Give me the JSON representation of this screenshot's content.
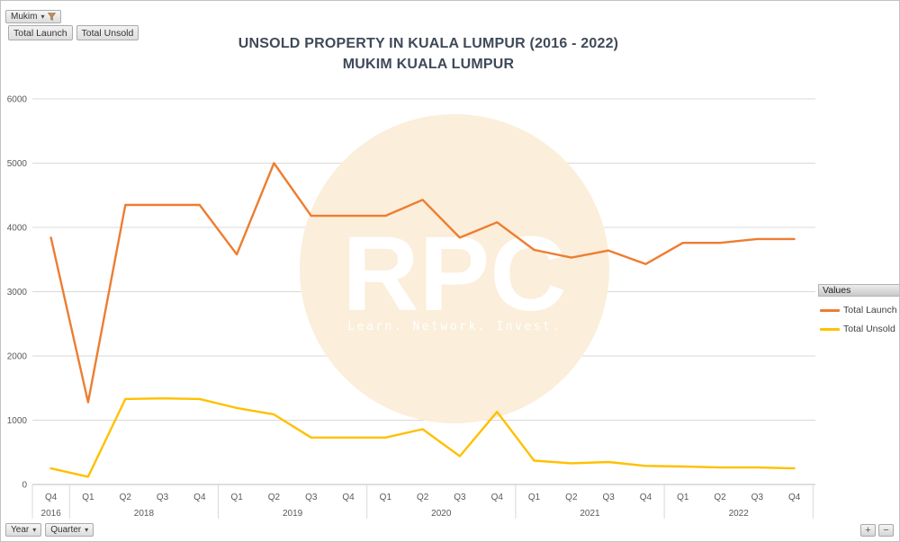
{
  "filter_bar": {
    "field_label": "Mukim"
  },
  "series_buttons": {
    "launch": "Total Launch",
    "unsold": "Total Unsold"
  },
  "title": {
    "line1": "UNSOLD PROPERTY IN KUALA LUMPUR (2016 - 2022)",
    "line2": "MUKIM KUALA LUMPUR"
  },
  "watermark": {
    "text": "RPC",
    "tagline": "Learn. Network. Invest.",
    "circle_color": "#FBEEDA",
    "text_color": "#FFFFFF"
  },
  "legend": {
    "header": "Values",
    "items": [
      {
        "label": "Total Launch",
        "color": "#ED7D31"
      },
      {
        "label": "Total Unsold",
        "color": "#FFC000"
      }
    ]
  },
  "axis_field_buttons": {
    "year": "Year",
    "quarter": "Quarter"
  },
  "zoom_controls": {
    "plus": "+",
    "minus": "−"
  },
  "colors": {
    "launch": "#ED7D31",
    "unsold": "#FFC000",
    "gridline": "#D9D9D9",
    "axis_line": "#BFBFBF",
    "axis_text": "#595959",
    "title_text": "#3F4A59"
  },
  "chart_data": {
    "type": "line",
    "title": "UNSOLD PROPERTY IN KUALA LUMPUR (2016 - 2022) MUKIM KUALA LUMPUR",
    "categories": [
      "2016 Q4",
      "2018 Q1",
      "2018 Q2",
      "2018 Q3",
      "2018 Q4",
      "2019 Q1",
      "2019 Q2",
      "2019 Q3",
      "2019 Q4",
      "2020 Q1",
      "2020 Q2",
      "2020 Q3",
      "2020 Q4",
      "2021 Q1",
      "2021 Q2",
      "2021 Q3",
      "2021 Q4",
      "2022 Q1",
      "2022 Q2",
      "2022 Q3",
      "2022 Q4"
    ],
    "x_groups": [
      {
        "year": "2016",
        "quarters": [
          "Q4"
        ]
      },
      {
        "year": "2018",
        "quarters": [
          "Q1",
          "Q2",
          "Q3",
          "Q4"
        ]
      },
      {
        "year": "2019",
        "quarters": [
          "Q1",
          "Q2",
          "Q3",
          "Q4"
        ]
      },
      {
        "year": "2020",
        "quarters": [
          "Q1",
          "Q2",
          "Q3",
          "Q4"
        ]
      },
      {
        "year": "2021",
        "quarters": [
          "Q1",
          "Q2",
          "Q3",
          "Q4"
        ]
      },
      {
        "year": "2022",
        "quarters": [
          "Q1",
          "Q2",
          "Q3",
          "Q4"
        ]
      }
    ],
    "series": [
      {
        "name": "Total Launch",
        "color": "#ED7D31",
        "values": [
          3840,
          1280,
          4350,
          4350,
          4350,
          3580,
          5000,
          4180,
          4180,
          4180,
          4430,
          3840,
          4080,
          3650,
          3530,
          3640,
          3430,
          3760,
          3760,
          3820,
          3820
        ]
      },
      {
        "name": "Total Unsold",
        "color": "#FFC000",
        "values": [
          250,
          120,
          1330,
          1340,
          1330,
          1190,
          1090,
          730,
          730,
          730,
          860,
          440,
          1130,
          370,
          330,
          350,
          290,
          280,
          265,
          265,
          250
        ]
      }
    ],
    "ylim": [
      0,
      6000
    ],
    "ytick_interval": 1000,
    "yticks": [
      0,
      1000,
      2000,
      3000,
      4000,
      5000,
      6000
    ],
    "grid": true,
    "legend_position": "right"
  }
}
